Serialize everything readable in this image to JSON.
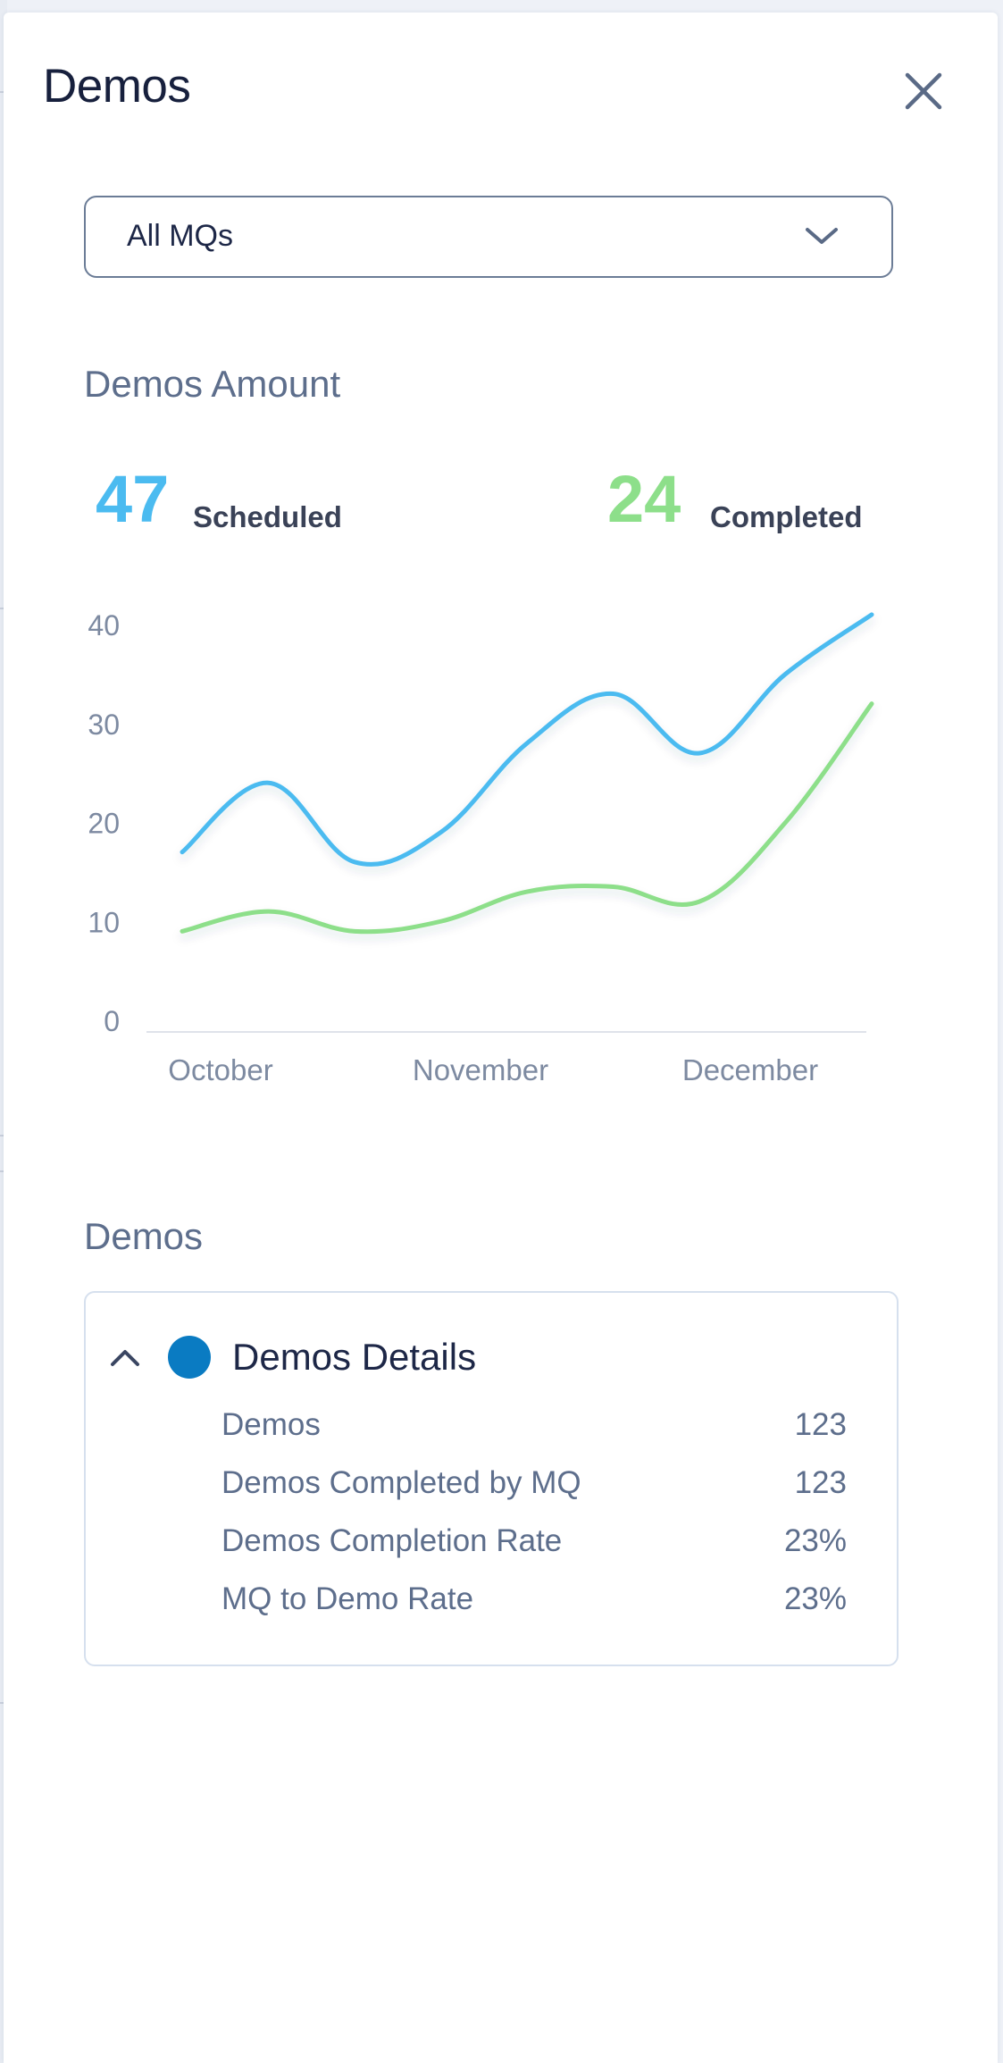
{
  "header": {
    "title": "Demos"
  },
  "icons": {
    "close": "close-icon",
    "chevron": "chevron-down-icon",
    "collapse": "chevron-up-icon"
  },
  "filter": {
    "selected": "All MQs"
  },
  "amount_section": {
    "title": "Demos Amount",
    "scheduled": {
      "value": "47",
      "label": "Scheduled",
      "color": "#4bbbf0"
    },
    "completed": {
      "value": "24",
      "label": "Completed",
      "color": "#8ddf8a"
    }
  },
  "chart_data": {
    "type": "line",
    "x_tick_labels": [
      "October",
      "November",
      "December"
    ],
    "y_tick_labels": [
      "40",
      "30",
      "20",
      "10",
      "0"
    ],
    "ylim": [
      0,
      40
    ],
    "x": [
      0,
      1,
      2,
      3,
      4,
      5,
      6,
      7,
      8
    ],
    "series": [
      {
        "name": "Scheduled",
        "color": "#4bbbf0",
        "values": [
          17,
          24,
          16,
          19,
          28,
          33,
          27,
          35,
          41
        ]
      },
      {
        "name": "Completed",
        "color": "#8ddf8a",
        "values": [
          9,
          11,
          9,
          10,
          13,
          13.5,
          12,
          20,
          32
        ]
      }
    ]
  },
  "demos_section": {
    "title": "Demos",
    "details": {
      "title": "Demos Details",
      "dot_color": "#0a7bc2",
      "rows": [
        {
          "label": "Demos",
          "value": "123"
        },
        {
          "label": "Demos Completed by MQ",
          "value": "123"
        },
        {
          "label": "Demos Completion Rate",
          "value": "23%"
        },
        {
          "label": "MQ to Demo Rate",
          "value": "23%"
        }
      ]
    }
  }
}
